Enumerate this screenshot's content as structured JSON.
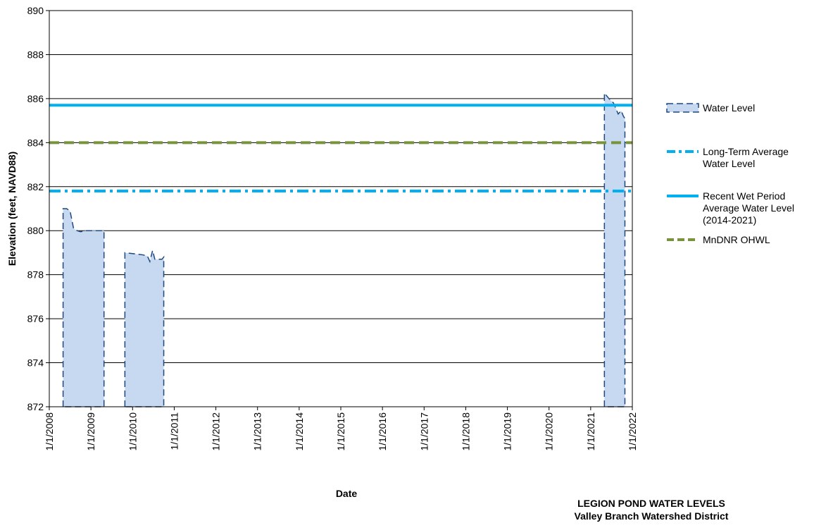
{
  "chart_data": {
    "type": "area",
    "title_lines": [
      "LEGION POND WATER LEVELS",
      "Valley Branch Watershed District"
    ],
    "xlabel": "Date",
    "ylabel": "Elevation (feet, NAVD88)",
    "ylim": [
      872,
      890
    ],
    "yticks": [
      872,
      874,
      876,
      878,
      880,
      882,
      884,
      886,
      888,
      890
    ],
    "xlim": [
      "2008-01-01",
      "2022-01-01"
    ],
    "xtick_labels": [
      "1/1/2008",
      "1/1/2009",
      "1/1/2010",
      "1/1/2011",
      "1/1/2012",
      "1/1/2013",
      "1/1/2014",
      "1/1/2015",
      "1/1/2016",
      "1/1/2017",
      "1/1/2018",
      "1/1/2019",
      "1/1/2020",
      "1/1/2021",
      "1/1/2022"
    ],
    "grid": "horizontal",
    "legend_position": "right",
    "series": [
      {
        "name": "Water Level",
        "kind": "area",
        "color": "#c6d9f1",
        "edge_color": "#1f497d",
        "segments": [
          [
            {
              "x": "2008-05-01",
              "y": 881.0
            },
            {
              "x": "2008-06-01",
              "y": 881.0
            },
            {
              "x": "2008-07-01",
              "y": 880.9
            },
            {
              "x": "2008-08-01",
              "y": 880.1
            },
            {
              "x": "2008-09-01",
              "y": 880.0
            },
            {
              "x": "2008-10-01",
              "y": 879.95
            },
            {
              "x": "2008-11-15",
              "y": 880.0
            },
            {
              "x": "2009-04-25",
              "y": 880.0
            }
          ],
          [
            {
              "x": "2009-10-25",
              "y": 879.0
            },
            {
              "x": "2010-01-15",
              "y": 878.95
            },
            {
              "x": "2010-04-01",
              "y": 878.9
            },
            {
              "x": "2010-05-10",
              "y": 878.85
            },
            {
              "x": "2010-06-01",
              "y": 878.6
            },
            {
              "x": "2010-06-25",
              "y": 879.1
            },
            {
              "x": "2010-07-15",
              "y": 878.7
            },
            {
              "x": "2010-09-15",
              "y": 878.7
            },
            {
              "x": "2010-10-01",
              "y": 878.8
            }
          ],
          [
            {
              "x": "2021-05-01",
              "y": 886.25
            },
            {
              "x": "2021-06-10",
              "y": 886.0
            },
            {
              "x": "2021-07-20",
              "y": 885.8
            },
            {
              "x": "2021-08-30",
              "y": 885.3
            },
            {
              "x": "2021-09-25",
              "y": 885.45
            },
            {
              "x": "2021-10-15",
              "y": 885.2
            },
            {
              "x": "2021-10-28",
              "y": 885.1
            }
          ]
        ]
      },
      {
        "name": "Long-Term Average\nWater Level",
        "kind": "hline",
        "y": 881.8,
        "color": "#00b0f0",
        "dash": "dashdot"
      },
      {
        "name": "Recent Wet Period\nAverage Water Level\n(2014-2021)",
        "kind": "hline",
        "y": 885.7,
        "color": "#00b0f0",
        "dash": "solid"
      },
      {
        "name": "MnDNR OHWL",
        "kind": "hline",
        "y": 884.0,
        "color": "#77933c",
        "dash": "dashed"
      }
    ]
  }
}
